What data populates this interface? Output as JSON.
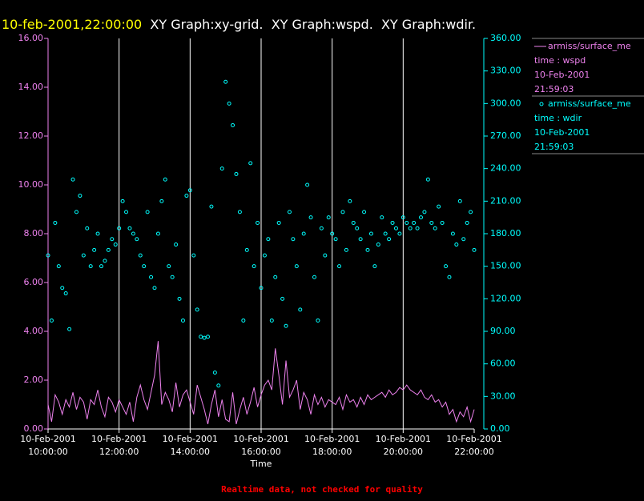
{
  "chart_data": {
    "type": "line",
    "title_time": "10-feb-2001,22:00:00",
    "title": "XY Graph:xy-grid.  XY Graph:wspd.  XY Graph:wdir.",
    "x_label": "Time",
    "footer": "Realtime data, not checked for quality",
    "xlim": [
      10,
      22
    ],
    "xticks": [
      {
        "value": 10,
        "label": "10-Feb-2001 10:00:00"
      },
      {
        "value": 12,
        "label": "10-Feb-2001 12:00:00"
      },
      {
        "value": 14,
        "label": "10-Feb-2001 14:00:00"
      },
      {
        "value": 16,
        "label": "10-Feb-2001 16:00:00"
      },
      {
        "value": 18,
        "label": "10-Feb-2001 18:00:00"
      },
      {
        "value": 20,
        "label": "10-Feb-2001 20:00:00"
      },
      {
        "value": 22,
        "label": "10-Feb-2001 22:00:00"
      }
    ],
    "ylim": [
      0,
      16
    ],
    "yticks": [
      {
        "value": 0,
        "label": "0.00"
      },
      {
        "value": 2,
        "label": "2.00"
      },
      {
        "value": 4,
        "label": "4.00"
      },
      {
        "value": 6,
        "label": "6.00"
      },
      {
        "value": 8,
        "label": "8.00"
      },
      {
        "value": 10,
        "label": "10.00"
      },
      {
        "value": 12,
        "label": "12.00"
      },
      {
        "value": 14,
        "label": "14.00"
      },
      {
        "value": 16,
        "label": "16.00"
      }
    ],
    "y2lim": [
      0,
      360
    ],
    "y2ticks": [
      {
        "value": 0,
        "label": "0.00"
      },
      {
        "value": 30,
        "label": "30.00"
      },
      {
        "value": 60,
        "label": "60.00"
      },
      {
        "value": 90,
        "label": "90.00"
      },
      {
        "value": 120,
        "label": "120.00"
      },
      {
        "value": 150,
        "label": "150.00"
      },
      {
        "value": 180,
        "label": "180.00"
      },
      {
        "value": 210,
        "label": "210.00"
      },
      {
        "value": 240,
        "label": "240.00"
      },
      {
        "value": 270,
        "label": "270.00"
      },
      {
        "value": 300,
        "label": "300.00"
      },
      {
        "value": 330,
        "label": "330.00"
      },
      {
        "value": 360,
        "label": "360.00"
      }
    ],
    "grid": true,
    "x": [
      10.0,
      10.1,
      10.2,
      10.3,
      10.4,
      10.5,
      10.6,
      10.7,
      10.8,
      10.9,
      11.0,
      11.1,
      11.2,
      11.3,
      11.4,
      11.5,
      11.6,
      11.7,
      11.8,
      11.9,
      12.0,
      12.1,
      12.2,
      12.3,
      12.4,
      12.5,
      12.6,
      12.7,
      12.8,
      12.9,
      13.0,
      13.1,
      13.2,
      13.3,
      13.4,
      13.5,
      13.6,
      13.7,
      13.8,
      13.9,
      14.0,
      14.1,
      14.2,
      14.3,
      14.4,
      14.5,
      14.6,
      14.7,
      14.8,
      14.9,
      15.0,
      15.1,
      15.2,
      15.3,
      15.4,
      15.5,
      15.6,
      15.7,
      15.8,
      15.9,
      16.0,
      16.1,
      16.2,
      16.3,
      16.4,
      16.5,
      16.6,
      16.7,
      16.8,
      16.9,
      17.0,
      17.1,
      17.2,
      17.3,
      17.4,
      17.5,
      17.6,
      17.7,
      17.8,
      17.9,
      18.0,
      18.1,
      18.2,
      18.3,
      18.4,
      18.5,
      18.6,
      18.7,
      18.8,
      18.9,
      19.0,
      19.1,
      19.2,
      19.3,
      19.4,
      19.5,
      19.6,
      19.7,
      19.8,
      19.9,
      20.0,
      20.1,
      20.2,
      20.3,
      20.4,
      20.5,
      20.6,
      20.7,
      20.8,
      20.9,
      21.0,
      21.1,
      21.2,
      21.3,
      21.4,
      21.5,
      21.6,
      21.7,
      21.8,
      21.9,
      22.0
    ],
    "series": [
      {
        "name": "armiss/surface_me",
        "color": "#ee82ee",
        "style": "line",
        "axis": "y",
        "legend": [
          "time : wspd",
          "10-Feb-2001",
          "21:59:03"
        ],
        "values": [
          1.0,
          0.3,
          1.4,
          1.1,
          0.6,
          1.2,
          0.9,
          1.5,
          0.8,
          1.3,
          1.1,
          0.4,
          1.2,
          1.0,
          1.6,
          0.9,
          0.5,
          1.3,
          1.1,
          0.7,
          1.2,
          0.9,
          0.6,
          1.1,
          0.3,
          1.3,
          1.8,
          1.2,
          0.8,
          1.5,
          2.2,
          3.6,
          1.0,
          1.5,
          1.2,
          0.7,
          1.9,
          0.9,
          1.4,
          1.6,
          1.1,
          0.6,
          1.8,
          1.3,
          0.8,
          0.2,
          1.0,
          1.6,
          0.5,
          1.2,
          0.4,
          0.3,
          1.5,
          0.2,
          0.8,
          1.3,
          0.6,
          1.1,
          1.7,
          0.9,
          1.4,
          1.8,
          2.0,
          1.6,
          3.3,
          2.2,
          1.0,
          2.8,
          1.3,
          1.6,
          2.0,
          0.8,
          1.5,
          1.2,
          0.6,
          1.4,
          1.0,
          1.3,
          0.9,
          1.2,
          1.1,
          1.0,
          1.3,
          0.8,
          1.4,
          1.1,
          1.2,
          0.9,
          1.3,
          1.0,
          1.4,
          1.2,
          1.3,
          1.4,
          1.5,
          1.3,
          1.6,
          1.4,
          1.5,
          1.7,
          1.6,
          1.8,
          1.6,
          1.5,
          1.4,
          1.6,
          1.3,
          1.2,
          1.4,
          1.1,
          1.2,
          0.9,
          1.1,
          0.6,
          0.8,
          0.3,
          0.7,
          0.5,
          0.9,
          0.3,
          0.8
        ]
      },
      {
        "name": "armiss/surface_me",
        "color": "#00ffff",
        "style": "markers",
        "axis": "y2",
        "legend": [
          "time : wdir",
          "10-Feb-2001",
          "21:59:03"
        ],
        "values": [
          160,
          100,
          190,
          150,
          130,
          125,
          92,
          230,
          200,
          215,
          160,
          185,
          150,
          165,
          180,
          150,
          155,
          165,
          175,
          170,
          185,
          210,
          200,
          185,
          180,
          175,
          160,
          150,
          200,
          140,
          130,
          180,
          210,
          230,
          150,
          140,
          170,
          120,
          100,
          215,
          220,
          160,
          110,
          85,
          84,
          85,
          205,
          52,
          40,
          240,
          320,
          300,
          280,
          235,
          200,
          100,
          165,
          245,
          150,
          190,
          130,
          160,
          175,
          100,
          140,
          190,
          120,
          95,
          200,
          175,
          150,
          110,
          180,
          225,
          195,
          140,
          100,
          185,
          160,
          195,
          180,
          175,
          150,
          200,
          165,
          210,
          190,
          185,
          175,
          200,
          165,
          180,
          150,
          170,
          195,
          180,
          175,
          190,
          185,
          180,
          195,
          190,
          185,
          190,
          185,
          195,
          200,
          230,
          190,
          185,
          205,
          190,
          150,
          140,
          180,
          170,
          210,
          175,
          190,
          200,
          165
        ]
      }
    ]
  }
}
